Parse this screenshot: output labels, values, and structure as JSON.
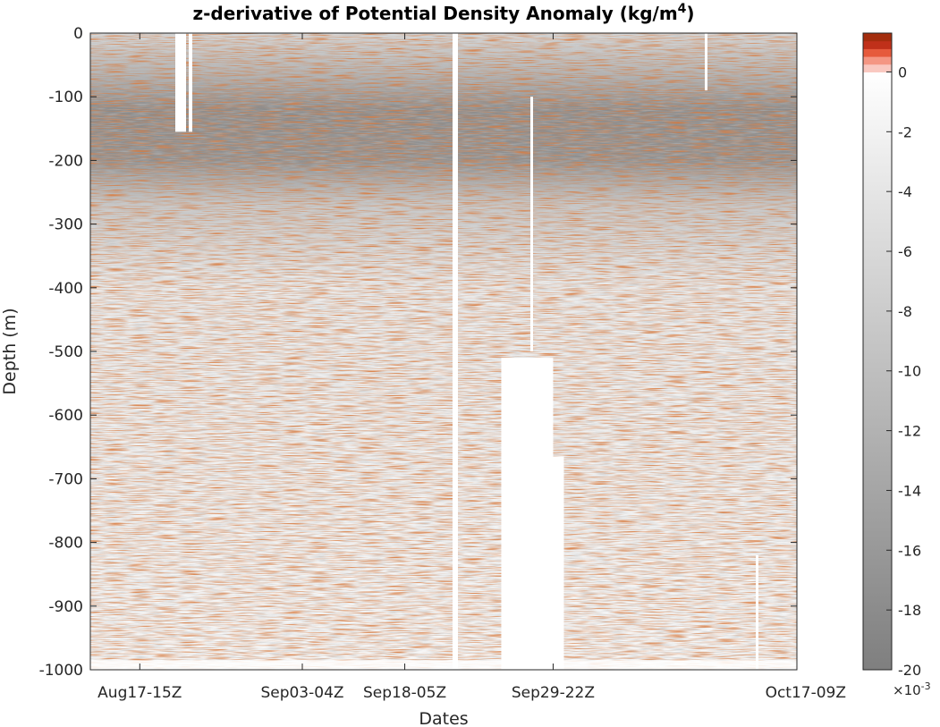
{
  "chart_data": {
    "type": "heatmap",
    "title": "z-derivative of Potential Density Anomaly (kg/m",
    "title_superscript": "4",
    "title_close": ")",
    "xlabel": "Dates",
    "ylabel": "Depth  (m)",
    "x_ticks": [
      "Aug17-15Z",
      "Sep03-04Z",
      "Sep18-05Z",
      "Sep29-22Z",
      "Oct17-09Z"
    ],
    "y_ticks": [
      0,
      -100,
      -200,
      -300,
      -400,
      -500,
      -600,
      -700,
      -800,
      -900,
      -1000
    ],
    "ylim": [
      -1000,
      0
    ],
    "colorbar": {
      "ticks": [
        0,
        -2,
        -4,
        -6,
        -8,
        -10,
        -12,
        -14,
        -16,
        -18,
        -20
      ],
      "exponent_label": "×10",
      "exponent": "-3",
      "range": [
        -20,
        1.3
      ],
      "colors": {
        "negative_low": "#7f7f7f",
        "zero": "#ffffff",
        "positive_steps": [
          "#f9c8c0",
          "#f49683",
          "#e65a3c",
          "#c0301a",
          "#a42d0e"
        ]
      }
    },
    "features": {
      "gray_layer_depth_m": [
        -80,
        -200
      ],
      "data_gaps": [
        {
          "x_label": "Sep29-22Z",
          "depth_m": [
            -510,
            -1000
          ]
        }
      ]
    }
  }
}
